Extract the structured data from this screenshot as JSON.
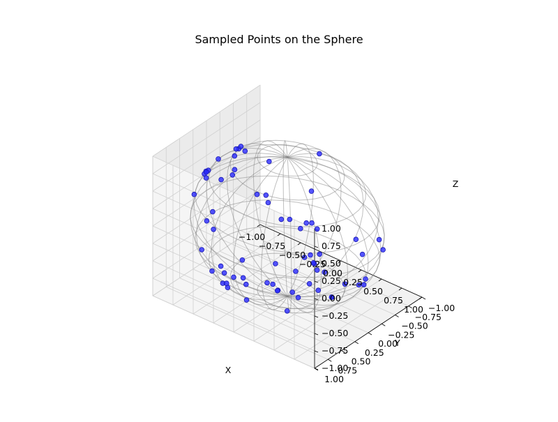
{
  "chart_data": {
    "type": "scatter",
    "title": "Sampled Points on the Sphere",
    "xlabel": "X",
    "ylabel": "Y",
    "zlabel": "Z",
    "xlim": [
      -1.0,
      1.0
    ],
    "ylim": [
      -1.0,
      1.0
    ],
    "zlim": [
      -1.0,
      1.0
    ],
    "xticks": [
      "−1.00",
      "−0.75",
      "−0.50",
      "−0.25",
      "0.00",
      "0.25",
      "0.50",
      "0.75",
      "1.00"
    ],
    "yticks": [
      "−1.00",
      "−0.75",
      "−0.50",
      "−0.25",
      "0.00",
      "0.25",
      "0.50",
      "0.75",
      "1.00"
    ],
    "zticks": [
      "−1.00",
      "−0.75",
      "−0.50",
      "−0.25",
      "0.00",
      "0.25",
      "0.50",
      "0.75",
      "1.00"
    ],
    "grid": true,
    "wireframe_sphere": true,
    "marker_color": "#2a2aff",
    "wireframe_color": "#808080",
    "points": [
      {
        "x": -0.38,
        "y": 0.41,
        "z": 0.83
      },
      {
        "x": 0.03,
        "y": 0.61,
        "z": 0.79
      },
      {
        "x": 0.18,
        "y": 0.63,
        "z": 0.76
      },
      {
        "x": -0.36,
        "y": 0.48,
        "z": 0.8
      },
      {
        "x": -0.46,
        "y": 0.54,
        "z": 0.71
      },
      {
        "x": -0.54,
        "y": 0.17,
        "z": 0.82
      },
      {
        "x": -0.47,
        "y": 0.08,
        "z": 0.88
      },
      {
        "x": -0.62,
        "y": -0.03,
        "z": 0.78
      },
      {
        "x": -0.66,
        "y": -0.04,
        "z": 0.75
      },
      {
        "x": -0.7,
        "y": -0.19,
        "z": 0.69
      },
      {
        "x": -0.82,
        "y": 0.05,
        "z": 0.57
      },
      {
        "x": 0.37,
        "y": 0.67,
        "z": 0.64
      },
      {
        "x": 0.56,
        "y": 0.6,
        "z": 0.57
      },
      {
        "x": 0.58,
        "y": 0.52,
        "z": 0.62
      },
      {
        "x": 0.62,
        "y": 0.48,
        "z": 0.62
      },
      {
        "x": 0.68,
        "y": 0.47,
        "z": 0.56
      },
      {
        "x": 0.13,
        "y": -0.4,
        "z": 0.91
      },
      {
        "x": 0.45,
        "y": 0.23,
        "z": 0.86
      },
      {
        "x": -0.1,
        "y": 0.19,
        "z": 0.98
      },
      {
        "x": -0.86,
        "y": 0.22,
        "z": 0.46
      },
      {
        "x": -0.93,
        "y": 0.07,
        "z": 0.36
      },
      {
        "x": -0.92,
        "y": 0.16,
        "z": 0.36
      },
      {
        "x": -0.94,
        "y": 0.09,
        "z": 0.34
      },
      {
        "x": -0.97,
        "y": 0.05,
        "z": 0.22
      },
      {
        "x": -0.86,
        "y": 0.44,
        "z": 0.24
      },
      {
        "x": 0.12,
        "y": 0.58,
        "z": 0.81
      },
      {
        "x": 0.44,
        "y": 0.62,
        "z": 0.65
      },
      {
        "x": 0.78,
        "y": 0.62,
        "z": 0.1
      },
      {
        "x": 0.75,
        "y": 0.63,
        "z": 0.18
      },
      {
        "x": 0.67,
        "y": 0.69,
        "z": 0.26
      },
      {
        "x": 0.62,
        "y": 0.78,
        "z": 0.08
      },
      {
        "x": -0.95,
        "y": -0.04,
        "z": -0.3
      },
      {
        "x": -0.59,
        "y": -0.05,
        "z": -0.81
      },
      {
        "x": -0.12,
        "y": -0.61,
        "z": -0.78
      },
      {
        "x": 0.06,
        "y": -0.32,
        "z": -0.95
      },
      {
        "x": 0.12,
        "y": -0.51,
        "z": -0.85
      },
      {
        "x": 0.29,
        "y": -0.84,
        "z": -0.46
      },
      {
        "x": 0.45,
        "y": -0.72,
        "z": -0.53
      },
      {
        "x": 0.65,
        "y": -0.73,
        "z": -0.22
      },
      {
        "x": 0.83,
        "y": -0.53,
        "z": -0.17
      },
      {
        "x": -0.74,
        "y": 0.48,
        "z": -0.47
      },
      {
        "x": -0.93,
        "y": 0.1,
        "z": -0.35
      },
      {
        "x": -0.88,
        "y": 0.05,
        "z": -0.47
      },
      {
        "x": -0.36,
        "y": -0.32,
        "z": -0.88
      },
      {
        "x": -0.05,
        "y": -0.56,
        "z": -0.83
      },
      {
        "x": -0.04,
        "y": -0.66,
        "z": -0.75
      },
      {
        "x": 0.7,
        "y": -0.4,
        "z": -0.59
      },
      {
        "x": 0.76,
        "y": -0.28,
        "z": -0.58
      },
      {
        "x": 0.95,
        "y": 0.1,
        "z": -0.29
      },
      {
        "x": 0.93,
        "y": 0.33,
        "z": -0.17
      },
      {
        "x": 0.78,
        "y": 0.6,
        "z": -0.2
      },
      {
        "x": -0.22,
        "y": -0.06,
        "z": -0.97
      },
      {
        "x": -0.61,
        "y": 0.32,
        "z": -0.72
      },
      {
        "x": -0.27,
        "y": -0.03,
        "z": -0.96
      },
      {
        "x": -0.13,
        "y": -0.02,
        "z": -0.99
      },
      {
        "x": 0.1,
        "y": -0.05,
        "z": -0.99
      },
      {
        "x": 0.43,
        "y": -0.18,
        "z": -0.88
      },
      {
        "x": 0.42,
        "y": -0.19,
        "z": -0.89
      },
      {
        "x": -0.26,
        "y": 0.72,
        "z": -0.64
      },
      {
        "x": -0.54,
        "y": 0.36,
        "z": -0.76
      },
      {
        "x": -0.32,
        "y": 0.72,
        "z": -0.61
      },
      {
        "x": 0.58,
        "y": 0.78,
        "z": -0.24
      },
      {
        "x": -0.38,
        "y": 0.83,
        "z": -0.41
      },
      {
        "x": -0.02,
        "y": 0.97,
        "z": -0.24
      },
      {
        "x": -0.06,
        "y": 0.67,
        "z": -0.74
      },
      {
        "x": -0.13,
        "y": -0.01,
        "z": -0.99
      },
      {
        "x": -0.44,
        "y": 0.16,
        "z": -0.88
      },
      {
        "x": 0.23,
        "y": 0.35,
        "z": -0.91
      },
      {
        "x": 0.12,
        "y": 0.95,
        "z": -0.28
      },
      {
        "x": -0.4,
        "y": 0.53,
        "z": -0.75
      }
    ]
  }
}
